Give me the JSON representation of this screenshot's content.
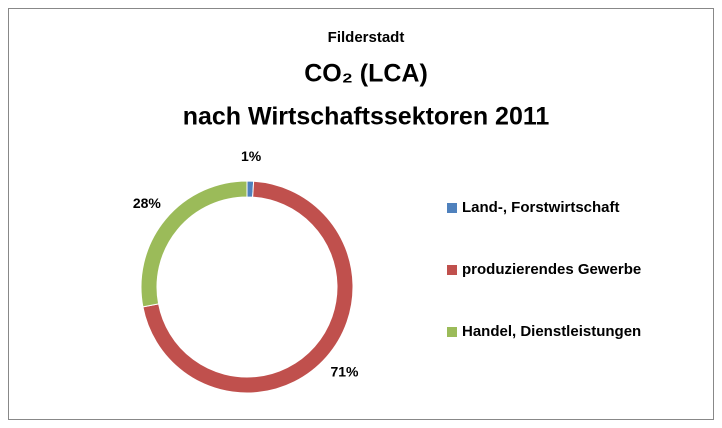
{
  "chart_data": {
    "type": "donut",
    "title": [
      "Filderstadt",
      "CO₂ (LCA)",
      "nach Wirtschaftssektoren 2011"
    ],
    "categories": [
      "Land-, Forstwirtschaft",
      "produzierendes Gewerbe",
      "Handel, Dienstleistungen"
    ],
    "values": [
      1,
      71,
      28
    ],
    "value_labels": [
      "1%",
      "71%",
      "28%"
    ],
    "colors": [
      "#4f81bd",
      "#c0504d",
      "#9bbb59"
    ],
    "legend": "right"
  }
}
